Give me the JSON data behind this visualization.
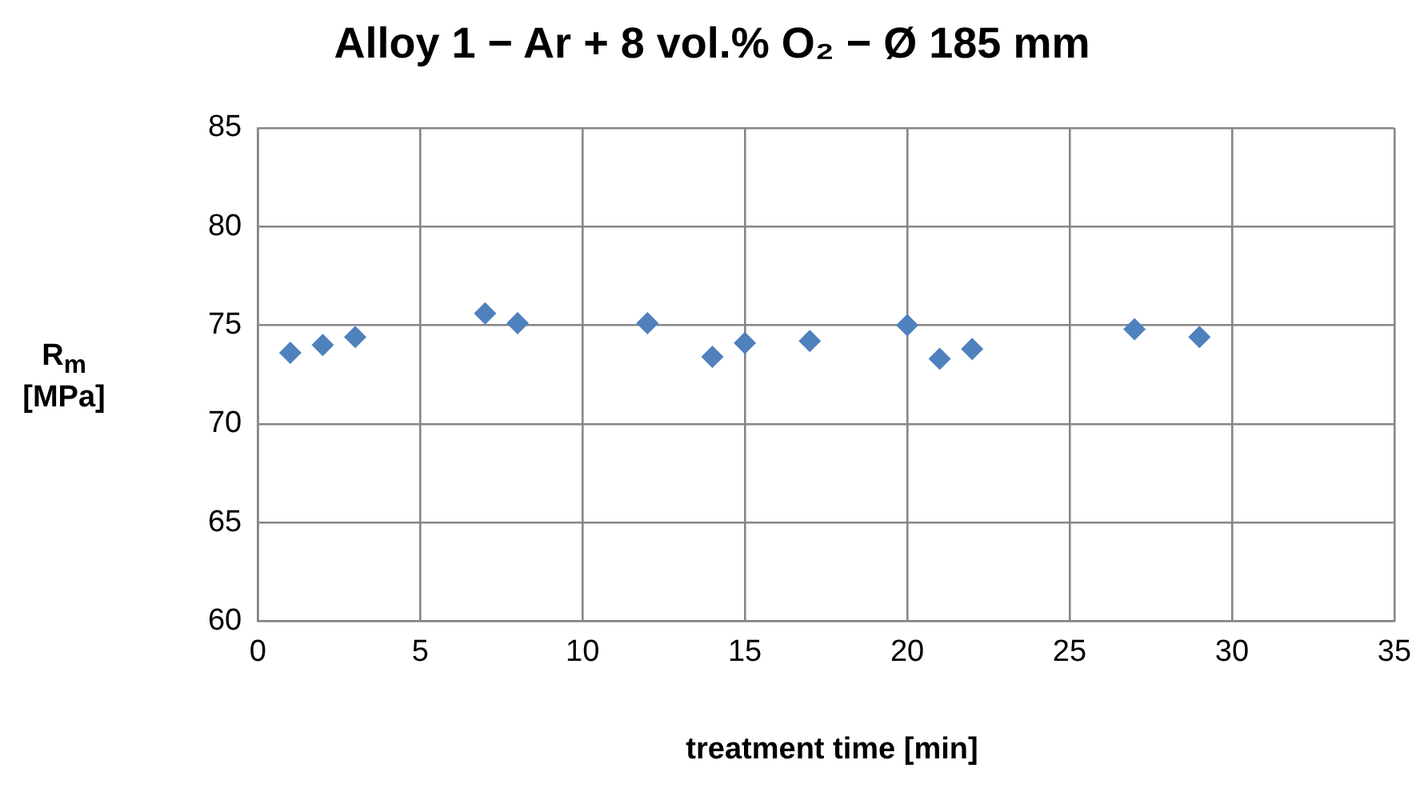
{
  "chart_data": {
    "type": "scatter",
    "title": "Alloy 1 − Ar + 8 vol.% O₂ − Ø 185 mm",
    "xlabel": "treatment time [min]",
    "ylabel": "R$_{m}$ [MPa]",
    "x": [
      1,
      2,
      3,
      7,
      8,
      12,
      14,
      15,
      17,
      20,
      21,
      22,
      27,
      29
    ],
    "series": [
      {
        "color": "#4f81bd",
        "values": [
          73.6,
          74.0,
          74.4,
          75.6,
          75.1,
          75.1,
          73.4,
          74.1,
          74.2,
          75.0,
          73.3,
          73.8,
          74.8,
          74.4
        ]
      }
    ],
    "xlim": [
      0,
      35
    ],
    "xticks": [
      0,
      5,
      10,
      15,
      20,
      25,
      30,
      35
    ],
    "ylim": [
      60,
      85
    ],
    "yticks": [
      60,
      65,
      70,
      75,
      80,
      85
    ],
    "grid": true,
    "legend": false,
    "marker": "diamond"
  }
}
